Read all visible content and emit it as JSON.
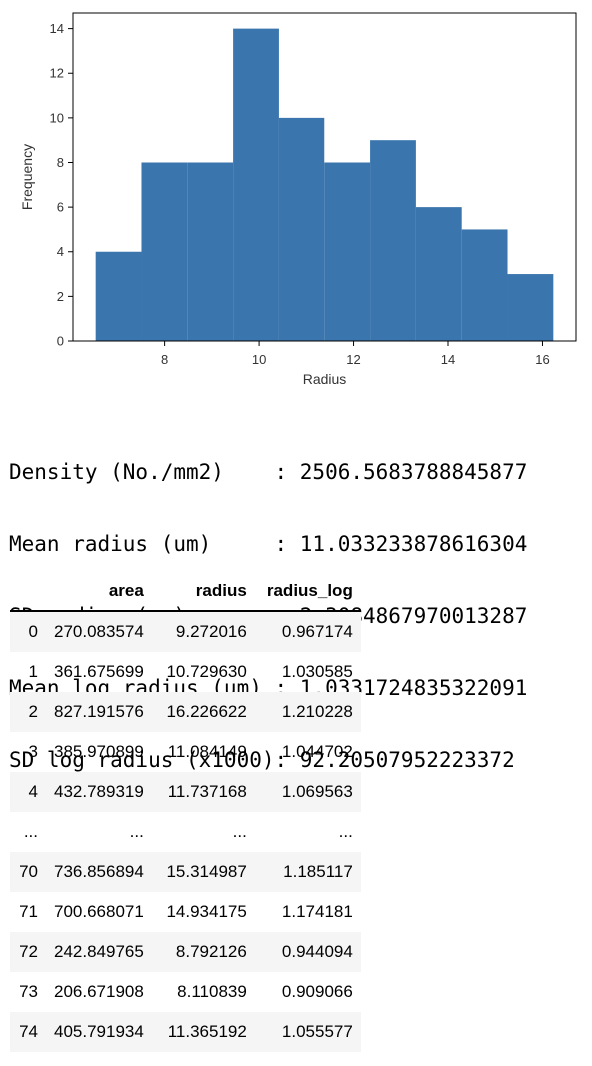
{
  "chart_data": {
    "type": "bar",
    "title": "",
    "xlabel": "Radius",
    "ylabel": "Frequency",
    "bins": [
      {
        "x0": 6.54,
        "x1": 7.51,
        "count": 4
      },
      {
        "x0": 7.51,
        "x1": 8.48,
        "count": 8
      },
      {
        "x0": 8.48,
        "x1": 9.45,
        "count": 8
      },
      {
        "x0": 9.45,
        "x1": 10.42,
        "count": 14
      },
      {
        "x0": 10.42,
        "x1": 11.38,
        "count": 10
      },
      {
        "x0": 11.38,
        "x1": 12.35,
        "count": 8
      },
      {
        "x0": 12.35,
        "x1": 13.32,
        "count": 9
      },
      {
        "x0": 13.32,
        "x1": 14.29,
        "count": 6
      },
      {
        "x0": 14.29,
        "x1": 15.26,
        "count": 5
      },
      {
        "x0": 15.26,
        "x1": 16.23,
        "count": 3
      }
    ],
    "xlim": [
      6.06,
      16.71
    ],
    "ylim": [
      0,
      14.7
    ],
    "xticks": [
      8,
      10,
      12,
      14,
      16
    ],
    "yticks": [
      0,
      2,
      4,
      6,
      8,
      10,
      12,
      14
    ],
    "bar_color": "#3a76ad",
    "grid": false
  },
  "stats": [
    "Density (No./mm2)    : 2506.5683788845877",
    "Mean radius (um)     : 11.033233878616304",
    "SD radius (um)       : 2.3084867970013287",
    "Mean log radius (um) : 1.0331724835322091",
    "SD log radius (x1000): 92.20507952223372"
  ],
  "table": {
    "headers": [
      "",
      "area",
      "radius",
      "radius_log"
    ],
    "rows": [
      [
        "0",
        "270.083574",
        "9.272016",
        "0.967174"
      ],
      [
        "1",
        "361.675699",
        "10.729630",
        "1.030585"
      ],
      [
        "2",
        "827.191576",
        "16.226622",
        "1.210228"
      ],
      [
        "3",
        "385.970899",
        "11.084149",
        "1.044702"
      ],
      [
        "4",
        "432.789319",
        "11.737168",
        "1.069563"
      ],
      [
        "...",
        "...",
        "...",
        "..."
      ],
      [
        "70",
        "736.856894",
        "15.314987",
        "1.185117"
      ],
      [
        "71",
        "700.668071",
        "14.934175",
        "1.174181"
      ],
      [
        "72",
        "242.849765",
        "8.792126",
        "0.944094"
      ],
      [
        "73",
        "206.671908",
        "8.110839",
        "0.909066"
      ],
      [
        "74",
        "405.791934",
        "11.365192",
        "1.055577"
      ]
    ]
  }
}
